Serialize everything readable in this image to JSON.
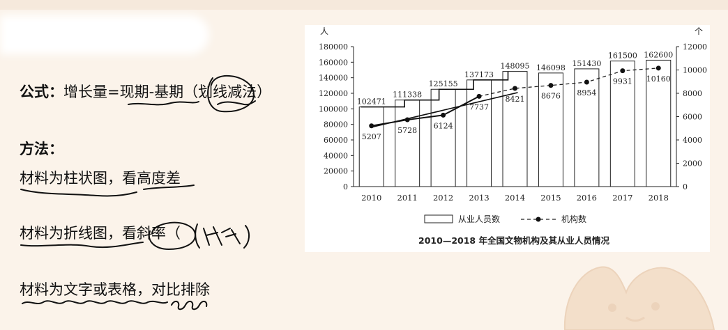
{
  "notes": {
    "formula_label": "公式：",
    "formula_text": "增长量=现期-基期（划线减法）",
    "method_title": "方法：",
    "method_1": "材料为柱状图，看高度差",
    "method_2": "材料为折线图，看斜率（",
    "method_3": "材料为文字或表格，对比排除",
    "ink_color": "#111111"
  },
  "chart_data": {
    "type": "bar",
    "title": "2010—2018 年全国文物机构及其从业人员情况",
    "categories": [
      "2010",
      "2011",
      "2012",
      "2013",
      "2014",
      "2015",
      "2016",
      "2017",
      "2018"
    ],
    "series": [
      {
        "name": "从业人员数",
        "type": "bar",
        "axis": "left",
        "values": [
          102471,
          111338,
          125155,
          137173,
          148095,
          146098,
          151430,
          161500,
          162600
        ]
      },
      {
        "name": "机构数",
        "type": "line",
        "axis": "right",
        "values": [
          5207,
          5728,
          6124,
          7737,
          8421,
          8676,
          8954,
          9931,
          10160
        ]
      }
    ],
    "y_left": {
      "unit": "人",
      "ticks": [
        "0",
        "20000",
        "40000",
        "60000",
        "80000",
        "100000",
        "120000",
        "140000",
        "160000",
        "180000"
      ],
      "range": [
        0,
        180000
      ]
    },
    "y_right": {
      "unit": "个",
      "ticks": [
        "0",
        "2000",
        "4000",
        "6000",
        "8000",
        "10000",
        "12000"
      ],
      "range": [
        0,
        12000
      ]
    },
    "legend_position": "bottom",
    "legend": [
      "从业人员数",
      "机构数"
    ],
    "bar_labels": [
      "102471",
      "111338",
      "125155",
      "137173",
      "148095",
      "146098",
      "151430",
      "161500",
      "162600"
    ],
    "line_labels": [
      "5207",
      "5728",
      "6124",
      "7737",
      "8421",
      "8676",
      "8954",
      "9931",
      "10160"
    ]
  }
}
